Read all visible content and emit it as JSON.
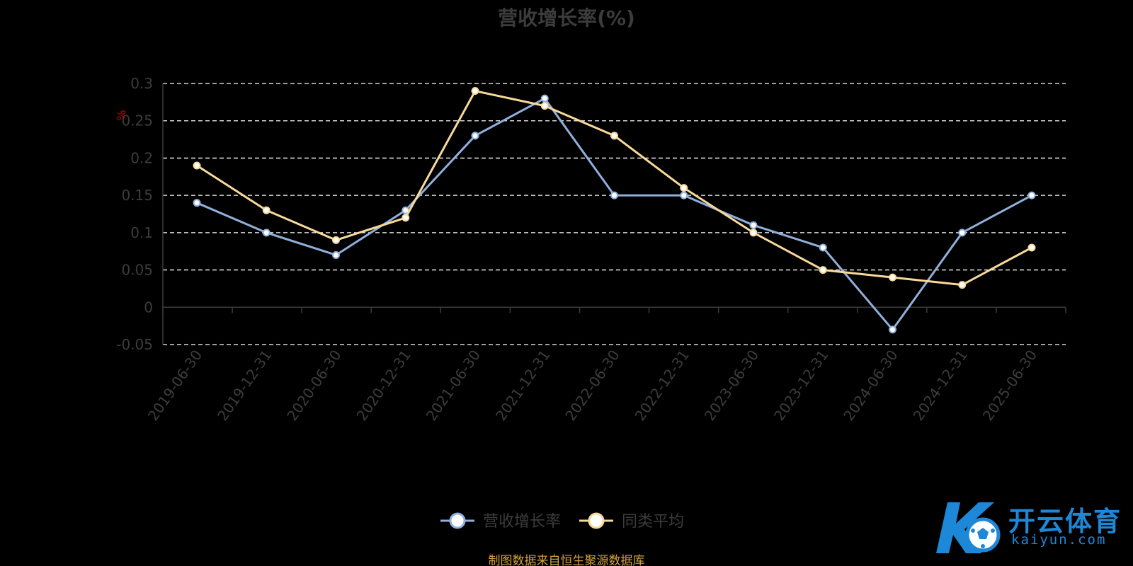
{
  "chart_data": {
    "type": "line",
    "title": "营收增长率(%)",
    "ylabel": "%",
    "xlabel": "",
    "categories": [
      "2019-06-30",
      "2019-12-31",
      "2020-06-30",
      "2020-12-31",
      "2021-06-30",
      "2021-12-31",
      "2022-06-30",
      "2022-12-31",
      "2023-06-30",
      "2023-12-31",
      "2024-06-30",
      "2024-12-31",
      "2025-06-30"
    ],
    "series": [
      {
        "name": "营收增长率",
        "color": "#8fb0dc",
        "values": [
          0.14,
          0.1,
          0.07,
          0.13,
          0.23,
          0.28,
          0.15,
          0.15,
          0.11,
          0.08,
          -0.03,
          0.1,
          0.15
        ]
      },
      {
        "name": "同类平均",
        "color": "#f8d99a",
        "values": [
          0.19,
          0.13,
          0.09,
          0.12,
          0.29,
          0.27,
          0.23,
          0.16,
          0.1,
          0.05,
          0.04,
          0.03,
          0.08
        ]
      }
    ],
    "yticks": [
      "0.3",
      "0.25",
      "0.2",
      "0.15",
      "0.1",
      "0.05",
      "0",
      "-0.05"
    ],
    "ylim": [
      -0.05,
      0.3
    ],
    "grid": true,
    "legend_position": "bottom-center",
    "axis_color": "#3c3c3c",
    "grid_color": "#ffffff",
    "unit_mark_color": "#cc0000"
  },
  "source_note": "制图数据来自恒生聚源数据库",
  "logo": {
    "name": "开云体育",
    "url": "kaiyun.com",
    "color": "#1e88d8"
  }
}
